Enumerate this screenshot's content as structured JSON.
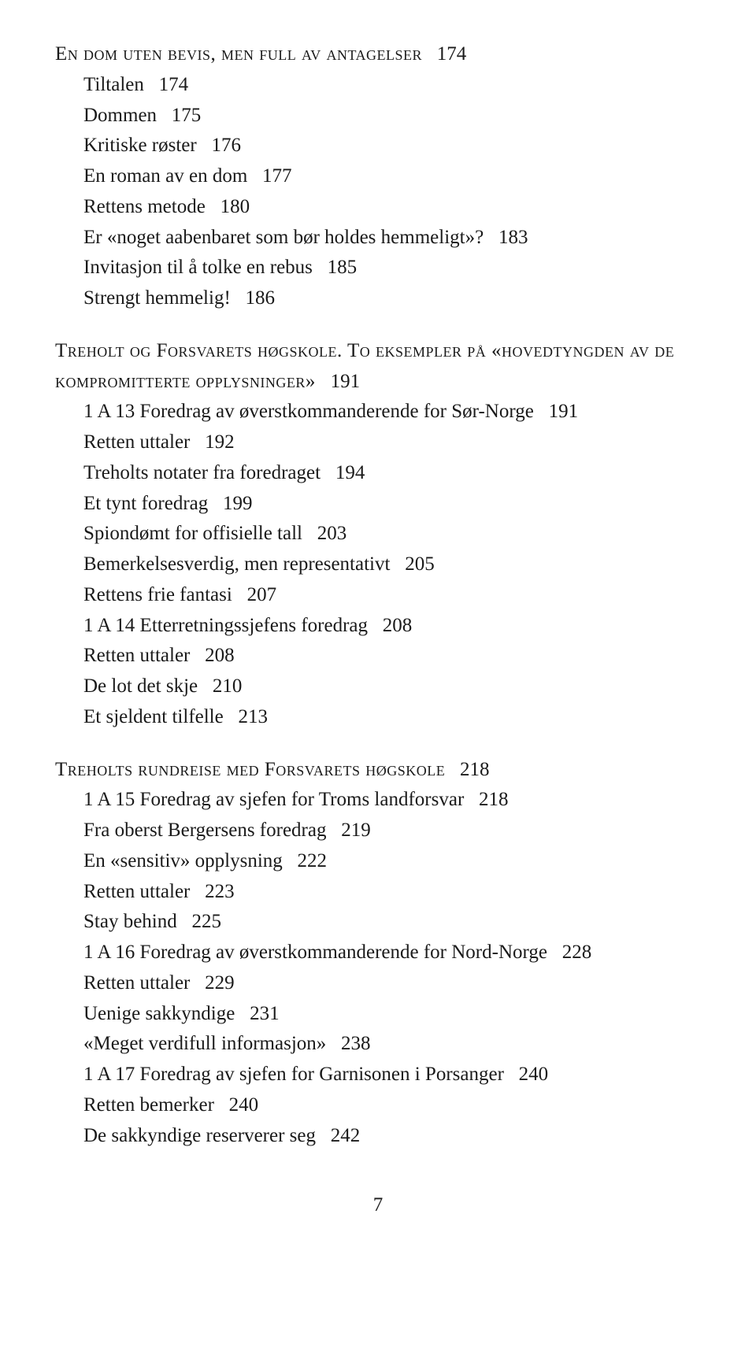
{
  "sections": [
    {
      "heading": "En dom uten bevis, men full av antagelser",
      "heading_page": "174",
      "entries": [
        {
          "text": "Tiltalen",
          "page": "174"
        },
        {
          "text": "Dommen",
          "page": "175"
        },
        {
          "text": "Kritiske røster",
          "page": "176"
        },
        {
          "text": "En roman av en dom",
          "page": "177"
        },
        {
          "text": "Rettens metode",
          "page": "180"
        },
        {
          "text": "Er «noget aabenbaret som bør holdes hemmeligt»?",
          "page": "183"
        },
        {
          "text": "Invitasjon til å tolke en rebus",
          "page": "185"
        },
        {
          "text": "Strengt hemmelig!",
          "page": "186"
        }
      ]
    },
    {
      "heading_part1": "Treholt og Forsvarets høgskole. To eksempler på «hovedtyngden av de kompromitterte opplysninger»",
      "heading_page": "191",
      "entries": [
        {
          "text": "1 A 13 Foredrag av øverstkommanderende for Sør-Norge",
          "page": "191"
        },
        {
          "text": "Retten uttaler",
          "page": "192"
        },
        {
          "text": "Treholts notater fra foredraget",
          "page": "194"
        },
        {
          "text": "Et tynt foredrag",
          "page": "199"
        },
        {
          "text": "Spiondømt for offisielle tall",
          "page": "203"
        },
        {
          "text": "Bemerkelsesverdig, men representativt",
          "page": "205"
        },
        {
          "text": "Rettens frie fantasi",
          "page": "207"
        },
        {
          "text": "1 A 14 Etterretningssjefens foredrag",
          "page": "208"
        },
        {
          "text": "Retten uttaler",
          "page": "208"
        },
        {
          "text": "De lot det skje",
          "page": "210"
        },
        {
          "text": "Et sjeldent tilfelle",
          "page": "213"
        }
      ]
    },
    {
      "heading": "Treholts rundreise med Forsvarets høgskole",
      "heading_page": "218",
      "entries": [
        {
          "text": "1 A 15 Foredrag av sjefen for Troms landforsvar",
          "page": "218"
        },
        {
          "text": "Fra oberst Bergersens foredrag",
          "page": "219"
        },
        {
          "text": "En «sensitiv» opplysning",
          "page": "222"
        },
        {
          "text": "Retten uttaler",
          "page": "223"
        },
        {
          "text": "Stay behind",
          "page": "225"
        },
        {
          "text": "1 A 16 Foredrag av øverstkommanderende for Nord-Norge",
          "page": "228"
        },
        {
          "text": "Retten uttaler",
          "page": "229"
        },
        {
          "text": "Uenige sakkyndige",
          "page": "231"
        },
        {
          "text": "«Meget verdifull informasjon»",
          "page": "238"
        },
        {
          "text": "1 A 17 Foredrag av sjefen for Garnisonen i Porsanger",
          "page": "240"
        },
        {
          "text": "Retten bemerker",
          "page": "240"
        },
        {
          "text": "De sakkyndige reserverer seg",
          "page": "242"
        }
      ]
    }
  ],
  "footer_page": "7"
}
